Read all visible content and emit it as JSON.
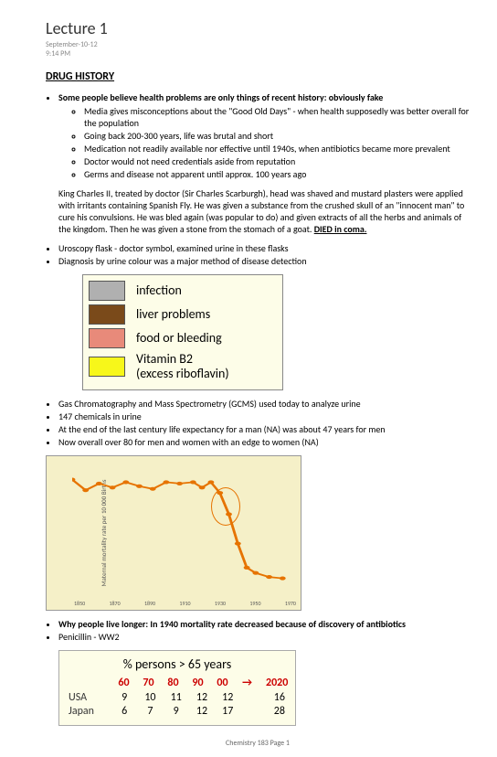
{
  "title": "Lecture 1",
  "meta": {
    "date": "September-10-12",
    "time": "9:14 PM"
  },
  "section_heading": "DRUG HISTORY",
  "intro_bullet": "Some people believe health problems are only things of recent history: obviously fake",
  "sub_bullets": [
    "Media gives misconceptions about the \"Good Old Days\" - when health supposedly was better overall for the population",
    "Going back 200-300 years, life was brutal and short",
    "Medication not readily available nor effective until 1940s, when antibiotics became more prevalent",
    "Doctor would not need credentials aside from reputation",
    "Germs and disease not apparent until approx. 100 years ago"
  ],
  "king_para_pre": "King Charles II, treated by doctor (Sir Charles Scarburgh), head was shaved and mustard plasters were applied with irritants containing Spanish Fly. He was given a substance from the crushed skull of an \"innocent man\" to cure his convulsions. He was bled again (was popular to do) and given extracts of all the herbs and animals of the kingdom. Then he was given a stone from the stomach of a goat. ",
  "king_para_died": "DIED in coma.",
  "uroscopy_bullets": [
    "Uroscopy flask - doctor symbol, examined urine in these flasks",
    "Diagnosis by urine colour was a major method of disease detection"
  ],
  "infection_rows": [
    {
      "color": "#b0b0b0",
      "label": "infection"
    },
    {
      "color": "#7a4a1a",
      "label": "liver problems"
    },
    {
      "color": "#e88a7a",
      "label": "food or bleeding"
    },
    {
      "color": "#f7f71a",
      "label": "Vitamin B2\n(excess riboflavin)"
    }
  ],
  "post_infection_bullets": [
    "Gas Chromatography and Mass Spectrometry (GCMS) used today to analyze urine",
    "147 chemicals in urine",
    "At the end of the last century life expectancy for a man (NA) was about 47 years for men",
    "Now overall over 80 for men and women with an edge to women (NA)"
  ],
  "mortality_chart": {
    "ylabel": "Maternal mortality rate per 10 000 Births",
    "xticks": [
      "1850",
      "1870",
      "1890",
      "1910",
      "1930",
      "1950",
      "1970"
    ],
    "points": [
      [
        0,
        12
      ],
      [
        6,
        20
      ],
      [
        12,
        15
      ],
      [
        18,
        18
      ],
      [
        24,
        14
      ],
      [
        30,
        17
      ],
      [
        36,
        19
      ],
      [
        42,
        14
      ],
      [
        48,
        15
      ],
      [
        54,
        14
      ],
      [
        58,
        18
      ],
      [
        62,
        14
      ],
      [
        66,
        22
      ],
      [
        70,
        38
      ],
      [
        74,
        60
      ],
      [
        78,
        78
      ],
      [
        82,
        82
      ],
      [
        88,
        85
      ],
      [
        94,
        86
      ]
    ],
    "circle": {
      "left_pct": 62,
      "top_pct": 18
    }
  },
  "why_bullets": [
    "Why people live longer: In 1940 mortality rate decreased because of discovery of antibiotics",
    "Penicillin - WW2"
  ],
  "age_table": {
    "title": "% persons > 65 years",
    "headers": [
      "60",
      "70",
      "80",
      "90",
      "00",
      "→",
      "2020"
    ],
    "rows": [
      {
        "label": "USA",
        "cells": [
          "9",
          "10",
          "11",
          "12",
          "12",
          "",
          "16"
        ]
      },
      {
        "label": "Japan",
        "cells": [
          "6",
          "7",
          "9",
          "12",
          "17",
          "",
          "28"
        ]
      }
    ]
  },
  "footer": "Chemistry 183 Page 1"
}
